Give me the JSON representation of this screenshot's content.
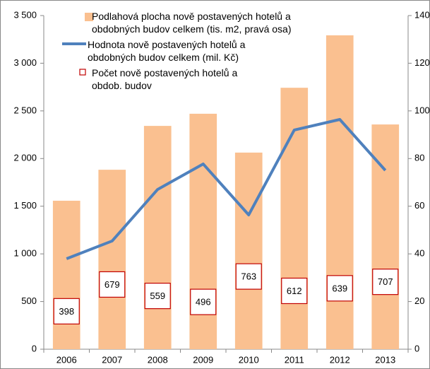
{
  "chart_data": {
    "type": "bar",
    "categories": [
      "2006",
      "2007",
      "2008",
      "2009",
      "2010",
      "2011",
      "2012",
      "2013"
    ],
    "series": [
      {
        "name": "Podlahová plocha nově postavených hotelů a obdobných budov celkem (tis. m2, pravá osa)",
        "type": "bar",
        "axis": "y2",
        "color": "#fac090",
        "values": [
          62.3,
          75.3,
          93.7,
          98.8,
          82.5,
          109.7,
          131.7,
          94.3
        ]
      },
      {
        "name": "Hodnota nově postavených hotelů a obdobných budov celkem (mil. Kč)",
        "type": "line",
        "color": "#4f81bd",
        "values": [
          949,
          1135,
          1676,
          1943,
          1409,
          2299,
          2410,
          1876
        ]
      },
      {
        "name": "Počet nově postavených hotelů a obdob. budov",
        "type": "scatter",
        "color": "#c00000",
        "values": [
          398,
          679,
          559,
          496,
          763,
          612,
          639,
          707
        ]
      }
    ],
    "ylim": [
      0,
      3500
    ],
    "yticks": [
      0,
      500,
      {
        "value": 1000,
        "label": "1 000"
      },
      {
        "value": 1500,
        "label": "1 500"
      },
      {
        "value": 2000,
        "label": "2 000"
      },
      {
        "value": 2500,
        "label": "2 500"
      },
      {
        "value": 3000,
        "label": "3 000"
      },
      {
        "value": 3500,
        "label": "3 500"
      }
    ],
    "y2lim": [
      0,
      140
    ],
    "y2ticks": [
      0,
      20,
      40,
      60,
      80,
      100,
      120,
      140
    ],
    "grid": false
  }
}
